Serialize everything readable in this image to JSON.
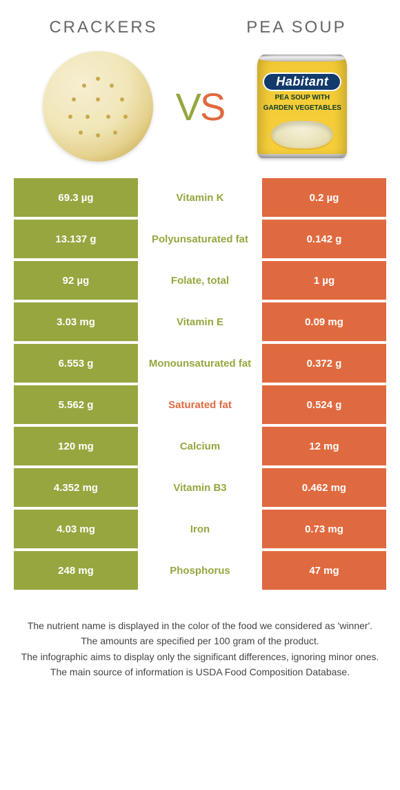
{
  "header": {
    "left_title": "CRACKERS",
    "right_title": "PEA SOUP",
    "vs_v": "V",
    "vs_s": "S"
  },
  "can": {
    "brand": "Habitant",
    "sub1": "PEA SOUP WITH",
    "sub2": "GARDEN VEGETABLES"
  },
  "colors": {
    "left": "#97a63f",
    "right": "#e06a3f"
  },
  "rows": [
    {
      "left": "69.3 µg",
      "label": "Vitamin K",
      "right": "0.2 µg",
      "winner": "left"
    },
    {
      "left": "13.137 g",
      "label": "Polyunsaturated fat",
      "right": "0.142 g",
      "winner": "left"
    },
    {
      "left": "92 µg",
      "label": "Folate, total",
      "right": "1 µg",
      "winner": "left"
    },
    {
      "left": "3.03 mg",
      "label": "Vitamin E",
      "right": "0.09 mg",
      "winner": "left"
    },
    {
      "left": "6.553 g",
      "label": "Monounsaturated fat",
      "right": "0.372 g",
      "winner": "left"
    },
    {
      "left": "5.562 g",
      "label": "Saturated fat",
      "right": "0.524 g",
      "winner": "right"
    },
    {
      "left": "120 mg",
      "label": "Calcium",
      "right": "12 mg",
      "winner": "left"
    },
    {
      "left": "4.352 mg",
      "label": "Vitamin B3",
      "right": "0.462 mg",
      "winner": "left"
    },
    {
      "left": "4.03 mg",
      "label": "Iron",
      "right": "0.73 mg",
      "winner": "left"
    },
    {
      "left": "248 mg",
      "label": "Phosphorus",
      "right": "47 mg",
      "winner": "left"
    }
  ],
  "footnotes": [
    "The nutrient name is displayed in the color of the food we considered as 'winner'.",
    "The amounts are specified per 100 gram of the product.",
    "The infographic aims to display only the significant differences, ignoring minor ones.",
    "The main source of information is USDA Food Composition Database."
  ]
}
